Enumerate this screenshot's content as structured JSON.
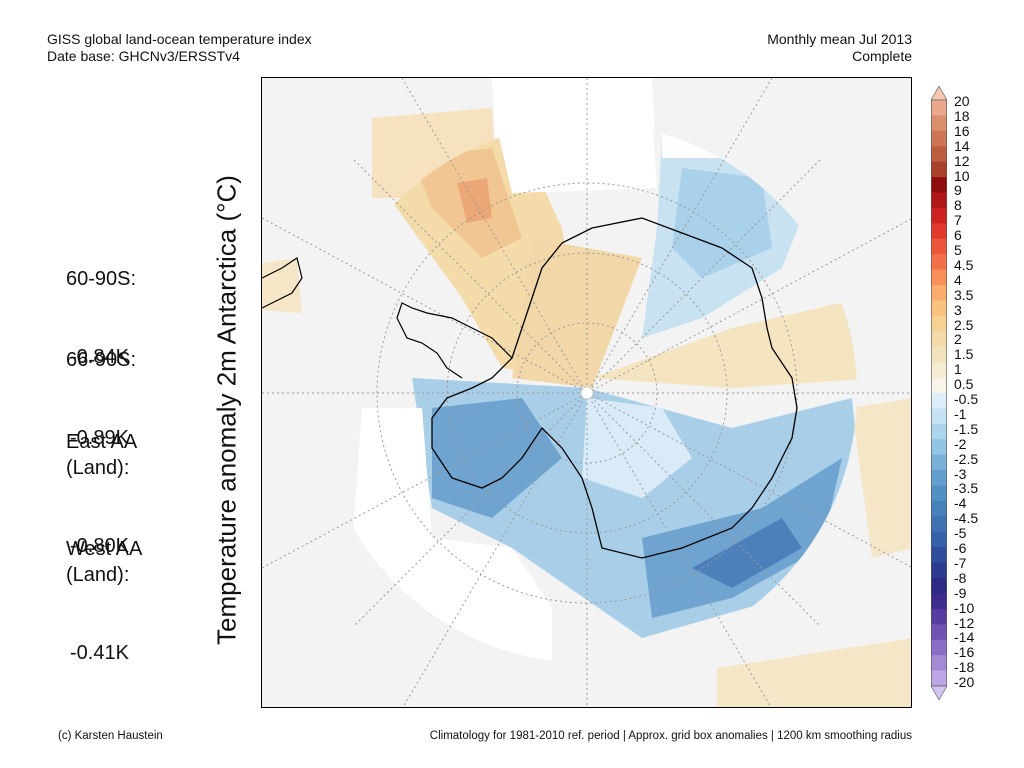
{
  "header": {
    "left_line1": "GISS global land-ocean temperature index",
    "left_line2": "Date base: GHCNv3/ERSSTv4",
    "right_line1": "Monthly mean Jul 2013",
    "right_line2": "Complete"
  },
  "y_axis_label": "Temperature anomaly 2m Antarctica (°C)",
  "stats": [
    {
      "label": "60-90S:",
      "value": "-0.84K"
    },
    {
      "label": "66-90S:",
      "value": "-0.89K"
    },
    {
      "label": "East AA\n(Land):",
      "value": "-0.80K"
    },
    {
      "label": "West AA\n(Land):",
      "value": "-0.41K"
    }
  ],
  "colorbar": {
    "labels": [
      "20",
      "18",
      "16",
      "14",
      "12",
      "10",
      "9",
      "8",
      "7",
      "6",
      "5",
      "4.5",
      "4",
      "3.5",
      "3",
      "2.5",
      "2",
      "1.5",
      "1",
      "0.5",
      "-0.5",
      "-1",
      "-1.5",
      "-2",
      "-2.5",
      "-3",
      "-3.5",
      "-4",
      "-4.5",
      "-5",
      "-6",
      "-7",
      "-8",
      "-9",
      "-10",
      "-12",
      "-14",
      "-16",
      "-18",
      "-20"
    ],
    "colors": [
      "#f7c6b3",
      "#eaa98a",
      "#dc8f6d",
      "#cd7655",
      "#bd5d40",
      "#a9412c",
      "#8e0e0e",
      "#b01818",
      "#cc2222",
      "#e03a2e",
      "#ec563b",
      "#f3714a",
      "#f7905b",
      "#f9ac6c",
      "#f9c27f",
      "#f6d192",
      "#f2dba8",
      "#f2e3bd",
      "#f4ebd2",
      "#f8f4ea",
      "#ddeef9",
      "#c6e3f3",
      "#acd4ec",
      "#92c4e3",
      "#79b2d8",
      "#64a0cd",
      "#5190c3",
      "#4681bb",
      "#3d71b2",
      "#3461a8",
      "#2e4d9a",
      "#2a3a8e",
      "#2c2a86",
      "#3d2b8e",
      "#563ba0",
      "#6f54b3",
      "#8a6fc6",
      "#a38ad6",
      "#bca6e4",
      "#d4c4f0"
    ]
  },
  "footer": {
    "left": "(c) Karsten Haustein",
    "right": "Climatology for 1981-2010 ref. period | Approx. grid box anomalies | 1200 km smoothing radius"
  }
}
